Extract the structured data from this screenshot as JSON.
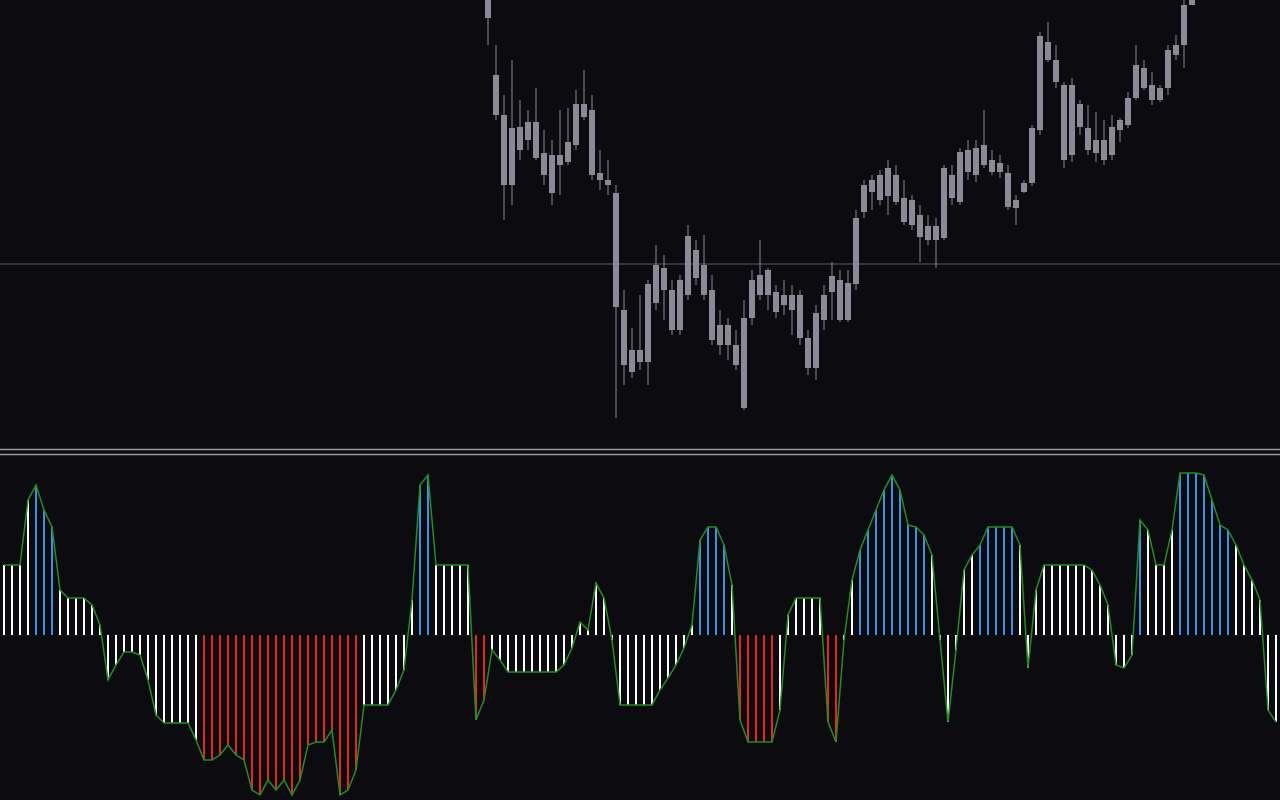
{
  "chart_data": [
    {
      "type": "candlestick",
      "color": "#8a8a96",
      "price_line": 186,
      "price_line_color": "#5a5a60",
      "ylim": [
        0,
        450
      ],
      "open": [
        432,
        335,
        265,
        265,
        300,
        310,
        292,
        275,
        257,
        285,
        288,
        305,
        333,
        275,
        270,
        265,
        143,
        85,
        78,
        88,
        88,
        147,
        160,
        120,
        120,
        155,
        172,
        155,
        110,
        105,
        105,
        85,
        42,
        132,
        155,
        155,
        138,
        145,
        140,
        112,
        82,
        82,
        130,
        158,
        130,
        130,
        166,
        238,
        258,
        250,
        254,
        248,
        228,
        225,
        213,
        210,
        210,
        212,
        252,
        248,
        278,
        275,
        285,
        278,
        278,
        243,
        242,
        258,
        267,
        320,
        390,
        368,
        290,
        295,
        323,
        300,
        297,
        290,
        295,
        320,
        325,
        352,
        362,
        350,
        350,
        362,
        395,
        405,
        445
      ],
      "high": [
        450,
        405,
        355,
        390,
        350,
        340,
        362,
        320,
        310,
        340,
        342,
        360,
        380,
        355,
        300,
        290,
        265,
        160,
        122,
        155,
        170,
        205,
        195,
        170,
        175,
        225,
        210,
        215,
        175,
        140,
        132,
        120,
        150,
        180,
        210,
        182,
        165,
        170,
        165,
        160,
        120,
        145,
        165,
        188,
        180,
        180,
        240,
        270,
        275,
        280,
        290,
        285,
        270,
        255,
        245,
        235,
        232,
        285,
        285,
        302,
        310,
        310,
        340,
        300,
        295,
        285,
        255,
        270,
        325,
        418,
        428,
        405,
        368,
        372,
        350,
        345,
        338,
        330,
        335,
        332,
        358,
        405,
        390,
        378,
        365,
        405,
        415,
        450,
        450
      ],
      "low": [
        405,
        330,
        230,
        245,
        290,
        300,
        290,
        265,
        245,
        255,
        285,
        300,
        330,
        270,
        260,
        255,
        32,
        65,
        72,
        80,
        65,
        140,
        130,
        115,
        115,
        150,
        165,
        150,
        105,
        95,
        90,
        80,
        40,
        125,
        150,
        140,
        132,
        135,
        115,
        105,
        75,
        70,
        120,
        130,
        128,
        128,
        160,
        232,
        240,
        245,
        235,
        245,
        225,
        220,
        188,
        205,
        182,
        210,
        245,
        245,
        270,
        268,
        282,
        275,
        272,
        240,
        225,
        257,
        264,
        315,
        388,
        362,
        282,
        288,
        315,
        295,
        288,
        285,
        290,
        308,
        322,
        350,
        360,
        345,
        348,
        355,
        390,
        382,
        445
      ],
      "close": [
        450,
        375,
        335,
        322,
        323,
        328,
        328,
        297,
        295,
        295,
        308,
        346,
        346,
        340,
        277,
        270,
        257,
        140,
        100,
        100,
        166,
        185,
        182,
        160,
        170,
        214,
        200,
        185,
        160,
        125,
        125,
        105,
        132,
        170,
        175,
        180,
        158,
        155,
        155,
        155,
        112,
        137,
        155,
        174,
        170,
        167,
        232,
        265,
        270,
        275,
        282,
        275,
        252,
        250,
        235,
        224,
        224,
        282,
        275,
        298,
        300,
        302,
        305,
        290,
        287,
        277,
        250,
        267,
        322,
        414,
        408,
        390,
        365,
        365,
        346,
        322,
        310,
        310,
        323,
        330,
        352,
        385,
        382,
        365,
        362,
        400,
        405,
        445,
        450
      ]
    },
    {
      "type": "bar",
      "line_color": "#1f8f1f",
      "ylim": [
        -165,
        180
      ],
      "values": [
        70,
        70,
        70,
        135,
        150,
        125,
        108,
        45,
        37,
        37,
        37,
        30,
        10,
        -45,
        -30,
        -17,
        -17,
        -20,
        -45,
        -80,
        -88,
        -88,
        -88,
        -88,
        -105,
        -125,
        -125,
        -120,
        -110,
        -120,
        -125,
        -155,
        -160,
        -145,
        -155,
        -145,
        -160,
        -145,
        -110,
        -107,
        -107,
        -95,
        -160,
        -155,
        -135,
        -70,
        -70,
        -70,
        -70,
        -55,
        -35,
        35,
        150,
        160,
        70,
        70,
        70,
        70,
        70,
        -85,
        -65,
        -15,
        -25,
        -37,
        -37,
        -37,
        -37,
        -37,
        -37,
        -37,
        -30,
        -13,
        13,
        5,
        52,
        37,
        -5,
        -70,
        -70,
        -70,
        -70,
        -70,
        -55,
        -43,
        -30,
        -13,
        10,
        95,
        108,
        108,
        90,
        50,
        -85,
        -107,
        -107,
        -107,
        -107,
        -75,
        20,
        37,
        37,
        37,
        37,
        -87,
        -107,
        -5,
        55,
        85,
        105,
        125,
        145,
        160,
        145,
        110,
        108,
        100,
        80,
        -5,
        -87,
        -15,
        65,
        80,
        90,
        108,
        108,
        108,
        108,
        90,
        -33,
        45,
        70,
        70,
        70,
        70,
        70,
        70,
        65,
        50,
        30,
        -30,
        -33,
        -20,
        115,
        105,
        70,
        70,
        105,
        162,
        162,
        162,
        160,
        135,
        110,
        105,
        90,
        70,
        55,
        35,
        -75,
        -87
      ],
      "colors": [
        "#ffffff",
        "#ffffff",
        "#ffffff",
        "#ffffff",
        "#3f8fe0",
        "#3f8fe0",
        "#3f8fe0",
        "#ffffff",
        "#ffffff",
        "#ffffff",
        "#ffffff",
        "#ffffff",
        "#ffffff",
        "#ffffff",
        "#ffffff",
        "#ffffff",
        "#ffffff",
        "#ffffff",
        "#ffffff",
        "#ffffff",
        "#ffffff",
        "#ffffff",
        "#ffffff",
        "#ffffff",
        "#ffffff",
        "#e8261e",
        "#e8261e",
        "#e8261e",
        "#e8261e",
        "#e8261e",
        "#e8261e",
        "#e8261e",
        "#e8261e",
        "#e8261e",
        "#e8261e",
        "#e8261e",
        "#e8261e",
        "#e8261e",
        "#e8261e",
        "#e8261e",
        "#e8261e",
        "#e8261e",
        "#e8261e",
        "#e8261e",
        "#e8261e",
        "#ffffff",
        "#ffffff",
        "#ffffff",
        "#ffffff",
        "#ffffff",
        "#ffffff",
        "#ffffff",
        "#3f8fe0",
        "#3f8fe0",
        "#ffffff",
        "#ffffff",
        "#ffffff",
        "#ffffff",
        "#ffffff",
        "#e8261e",
        "#e8261e",
        "#ffffff",
        "#ffffff",
        "#ffffff",
        "#ffffff",
        "#ffffff",
        "#ffffff",
        "#ffffff",
        "#ffffff",
        "#ffffff",
        "#ffffff",
        "#ffffff",
        "#ffffff",
        "#ffffff",
        "#ffffff",
        "#ffffff",
        "#ffffff",
        "#ffffff",
        "#ffffff",
        "#ffffff",
        "#ffffff",
        "#ffffff",
        "#ffffff",
        "#ffffff",
        "#ffffff",
        "#ffffff",
        "#ffffff",
        "#3f8fe0",
        "#3f8fe0",
        "#3f8fe0",
        "#3f8fe0",
        "#ffffff",
        "#e8261e",
        "#e8261e",
        "#e8261e",
        "#e8261e",
        "#e8261e",
        "#ffffff",
        "#ffffff",
        "#ffffff",
        "#ffffff",
        "#ffffff",
        "#ffffff",
        "#e8261e",
        "#e8261e",
        "#ffffff",
        "#ffffff",
        "#3f8fe0",
        "#3f8fe0",
        "#3f8fe0",
        "#3f8fe0",
        "#3f8fe0",
        "#3f8fe0",
        "#3f8fe0",
        "#3f8fe0",
        "#3f8fe0",
        "#ffffff",
        "#ffffff",
        "#ffffff",
        "#ffffff",
        "#ffffff",
        "#ffffff",
        "#3f8fe0",
        "#3f8fe0",
        "#3f8fe0",
        "#3f8fe0",
        "#3f8fe0",
        "#ffffff",
        "#ffffff",
        "#ffffff",
        "#ffffff",
        "#ffffff",
        "#ffffff",
        "#ffffff",
        "#ffffff",
        "#ffffff",
        "#ffffff",
        "#ffffff",
        "#ffffff",
        "#ffffff",
        "#ffffff",
        "#ffffff",
        "#3f8fe0",
        "#ffffff",
        "#ffffff",
        "#ffffff",
        "#ffffff",
        "#3f8fe0",
        "#3f8fe0",
        "#3f8fe0",
        "#3f8fe0",
        "#3f8fe0",
        "#3f8fe0",
        "#3f8fe0",
        "#ffffff",
        "#ffffff",
        "#ffffff",
        "#ffffff",
        "#ffffff",
        "#ffffff"
      ]
    }
  ]
}
